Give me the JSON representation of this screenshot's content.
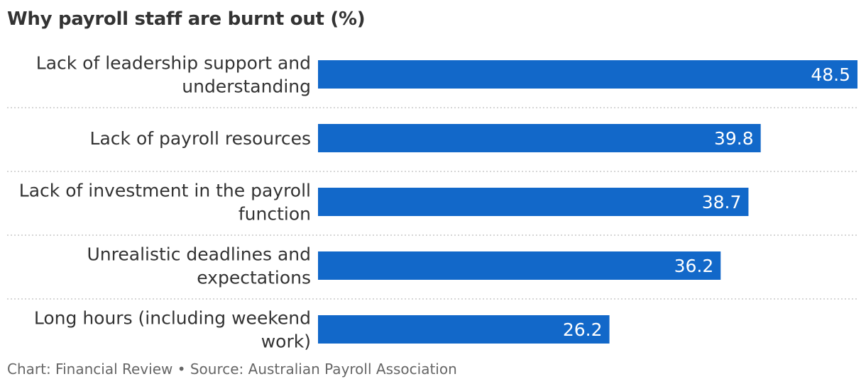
{
  "chart_data": {
    "type": "bar",
    "orientation": "horizontal",
    "title": "Why payroll staff are burnt out (%)",
    "categories": [
      [
        "Lack of leadership support and",
        "understanding"
      ],
      [
        "Lack of payroll resources"
      ],
      [
        "Lack of investment in the payroll",
        "function"
      ],
      [
        "Unrealistic deadlines and",
        "expectations"
      ],
      [
        "Long hours (including weekend",
        "work)"
      ]
    ],
    "values": [
      48.5,
      39.8,
      38.7,
      36.2,
      26.2
    ],
    "value_labels": [
      "48.5",
      "39.8",
      "38.7",
      "36.2",
      "26.2"
    ],
    "xlim": [
      0,
      48.5
    ],
    "grid": false,
    "legend": "none",
    "bar_color": "#1268c9",
    "value_label_color": "#ffffff",
    "separator_color": "#c8c8c8"
  },
  "footer": {
    "source": "Chart: Financial Review • Source: Australian Payroll Association"
  }
}
